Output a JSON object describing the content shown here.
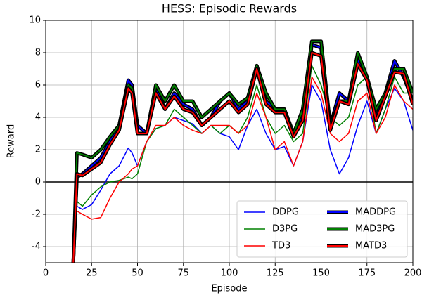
{
  "chart_data": {
    "type": "line",
    "title": "HESS: Episodic Rewards",
    "xlabel": "Episode",
    "ylabel": "Reward",
    "x": [
      15,
      17,
      20,
      25,
      30,
      35,
      40,
      45,
      47,
      50,
      55,
      60,
      65,
      70,
      75,
      80,
      85,
      90,
      95,
      100,
      105,
      110,
      115,
      120,
      125,
      130,
      135,
      140,
      145,
      150,
      155,
      160,
      165,
      170,
      175,
      180,
      185,
      190,
      195,
      200
    ],
    "series": [
      {
        "name": "DDPG",
        "color": "#0000ff",
        "width": 1.5,
        "values": [
          -5,
          -1.5,
          -1.7,
          -1.4,
          -0.5,
          0.5,
          1.0,
          2.1,
          1.8,
          1.0,
          2.5,
          3.3,
          3.5,
          4.0,
          3.8,
          3.6,
          3.0,
          3.5,
          3.0,
          2.8,
          2.0,
          3.5,
          4.5,
          3.0,
          2.0,
          2.2,
          1.0,
          2.5,
          6.0,
          5.0,
          2.0,
          0.5,
          1.5,
          3.5,
          5.0,
          3.0,
          4.5,
          5.8,
          5.0,
          3.2
        ]
      },
      {
        "name": "D3PG",
        "color": "#008000",
        "width": 1.5,
        "values": [
          -5,
          -1.2,
          -1.5,
          -0.8,
          -0.3,
          0.0,
          0.1,
          0.3,
          0.2,
          0.5,
          2.5,
          3.3,
          3.5,
          4.5,
          4.0,
          3.5,
          3.0,
          3.5,
          3.0,
          3.5,
          3.0,
          4.0,
          6.0,
          4.0,
          3.0,
          3.5,
          2.5,
          3.0,
          7.2,
          6.0,
          4.0,
          3.5,
          4.0,
          6.0,
          6.5,
          3.0,
          4.5,
          6.5,
          5.5,
          5.5
        ]
      },
      {
        "name": "TD3",
        "color": "#ff0000",
        "width": 1.5,
        "values": [
          -5,
          -1.8,
          -2.0,
          -2.3,
          -2.2,
          -1.0,
          0.0,
          0.5,
          0.8,
          1.0,
          2.5,
          3.5,
          3.5,
          4.0,
          3.5,
          3.2,
          3.0,
          3.5,
          3.5,
          3.5,
          3.0,
          3.5,
          5.5,
          4.0,
          2.0,
          2.5,
          1.0,
          2.5,
          6.5,
          5.5,
          3.0,
          2.5,
          3.0,
          5.0,
          5.5,
          3.0,
          4.0,
          6.0,
          5.0,
          4.5
        ]
      },
      {
        "name": "MADDPG",
        "color": "#0000ff",
        "edgecolor": "#000000",
        "width": 2,
        "values": [
          -5,
          0.3,
          0.5,
          1.0,
          1.5,
          2.5,
          3.5,
          6.3,
          6.0,
          3.5,
          3.0,
          5.8,
          4.5,
          5.5,
          4.8,
          4.5,
          3.5,
          4.0,
          5.0,
          5.5,
          4.5,
          5.0,
          7.2,
          5.0,
          4.5,
          4.5,
          3.0,
          4.0,
          8.5,
          8.3,
          3.5,
          5.5,
          5.0,
          7.5,
          6.5,
          4.0,
          5.5,
          7.5,
          6.5,
          5.0
        ]
      },
      {
        "name": "MAD3PG",
        "color": "#008000",
        "edgecolor": "#000000",
        "width": 2,
        "values": [
          -5,
          1.8,
          1.7,
          1.5,
          2.0,
          2.8,
          3.5,
          6.0,
          5.8,
          3.0,
          3.0,
          6.0,
          5.0,
          6.0,
          5.0,
          5.0,
          4.0,
          4.5,
          5.0,
          5.5,
          4.8,
          5.2,
          7.2,
          5.5,
          4.5,
          4.5,
          3.0,
          4.5,
          8.7,
          8.7,
          3.5,
          5.0,
          5.0,
          8.0,
          6.5,
          4.5,
          5.5,
          7.0,
          7.0,
          5.5
        ]
      },
      {
        "name": "MATD3",
        "color": "#ff0000",
        "edgecolor": "#000000",
        "width": 2,
        "values": [
          -5,
          0.5,
          0.4,
          0.8,
          1.2,
          2.3,
          3.2,
          5.8,
          5.5,
          3.0,
          3.0,
          5.5,
          4.5,
          5.3,
          4.5,
          4.3,
          3.5,
          4.0,
          4.5,
          5.0,
          4.3,
          4.8,
          7.0,
          4.8,
          4.3,
          4.3,
          2.8,
          3.8,
          8.0,
          7.8,
          3.2,
          5.0,
          4.8,
          7.3,
          6.3,
          3.8,
          5.3,
          6.8,
          6.7,
          4.8
        ]
      }
    ],
    "xlim": [
      0,
      200
    ],
    "xticks": [
      0,
      25,
      50,
      75,
      100,
      125,
      150,
      175,
      200
    ],
    "ylim": [
      -5,
      10
    ],
    "yticks": [
      -4,
      -2,
      0,
      2,
      4,
      6,
      8,
      10
    ],
    "hline": 0,
    "grid": true,
    "legend": "lower right"
  }
}
